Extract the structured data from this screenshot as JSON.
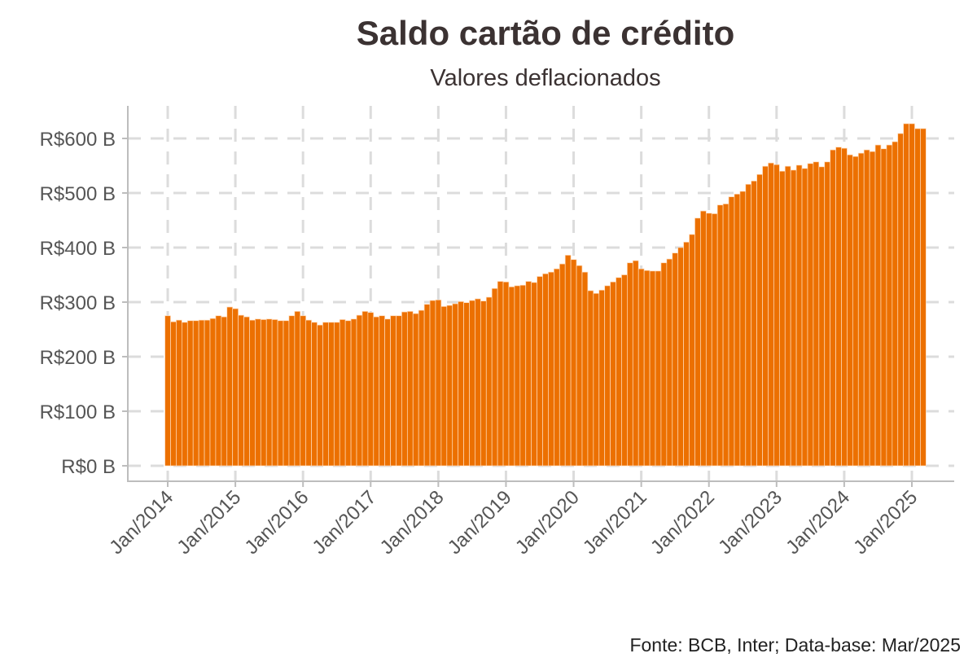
{
  "chart_data": {
    "type": "bar",
    "title": "Saldo cartão de crédito",
    "subtitle": "Valores deflacionados",
    "caption": "Fonte: BCB, Inter; Data-base: Mar/2025",
    "xlabel": "",
    "ylabel": "",
    "ylim": [
      0,
      600
    ],
    "grid": true,
    "legend": "none",
    "bar_color": "#EC7000",
    "start": "Jan/2014",
    "end": "Mar/2025",
    "frequency": "monthly",
    "unit": "R$ bilhões",
    "y_ticks": [
      {
        "value": 0,
        "label": "R$0 B"
      },
      {
        "value": 100,
        "label": "R$100 B"
      },
      {
        "value": 200,
        "label": "R$200 B"
      },
      {
        "value": 300,
        "label": "R$300 B"
      },
      {
        "value": 400,
        "label": "R$400 B"
      },
      {
        "value": 500,
        "label": "R$500 B"
      },
      {
        "value": 600,
        "label": "R$600 B"
      }
    ],
    "x_ticks": [
      {
        "month_index": 0,
        "label": "Jan/2014"
      },
      {
        "month_index": 12,
        "label": "Jan/2015"
      },
      {
        "month_index": 24,
        "label": "Jan/2016"
      },
      {
        "month_index": 36,
        "label": "Jan/2017"
      },
      {
        "month_index": 48,
        "label": "Jan/2018"
      },
      {
        "month_index": 60,
        "label": "Jan/2019"
      },
      {
        "month_index": 72,
        "label": "Jan/2020"
      },
      {
        "month_index": 84,
        "label": "Jan/2021"
      },
      {
        "month_index": 96,
        "label": "Jan/2022"
      },
      {
        "month_index": 108,
        "label": "Jan/2023"
      },
      {
        "month_index": 120,
        "label": "Jan/2024"
      },
      {
        "month_index": 132,
        "label": "Jan/2025"
      }
    ],
    "values": [
      275,
      264,
      267,
      263,
      266,
      266,
      267,
      267,
      270,
      275,
      273,
      291,
      288,
      276,
      273,
      267,
      269,
      268,
      269,
      268,
      266,
      266,
      275,
      283,
      275,
      267,
      263,
      258,
      263,
      263,
      263,
      268,
      266,
      269,
      276,
      283,
      281,
      273,
      275,
      269,
      275,
      275,
      282,
      283,
      279,
      285,
      296,
      303,
      304,
      292,
      294,
      297,
      301,
      299,
      303,
      306,
      302,
      309,
      325,
      338,
      337,
      328,
      330,
      331,
      338,
      336,
      347,
      352,
      355,
      361,
      370,
      386,
      378,
      367,
      355,
      321,
      316,
      322,
      330,
      337,
      345,
      350,
      372,
      376,
      361,
      358,
      357,
      357,
      372,
      379,
      390,
      400,
      410,
      424,
      454,
      467,
      463,
      462,
      478,
      480,
      493,
      498,
      503,
      516,
      522,
      534,
      549,
      555,
      552,
      540,
      549,
      542,
      551,
      545,
      554,
      557,
      548,
      557,
      579,
      584,
      582,
      570,
      567,
      573,
      579,
      576,
      588,
      581,
      588,
      594,
      609,
      627,
      627,
      618,
      618
    ]
  }
}
